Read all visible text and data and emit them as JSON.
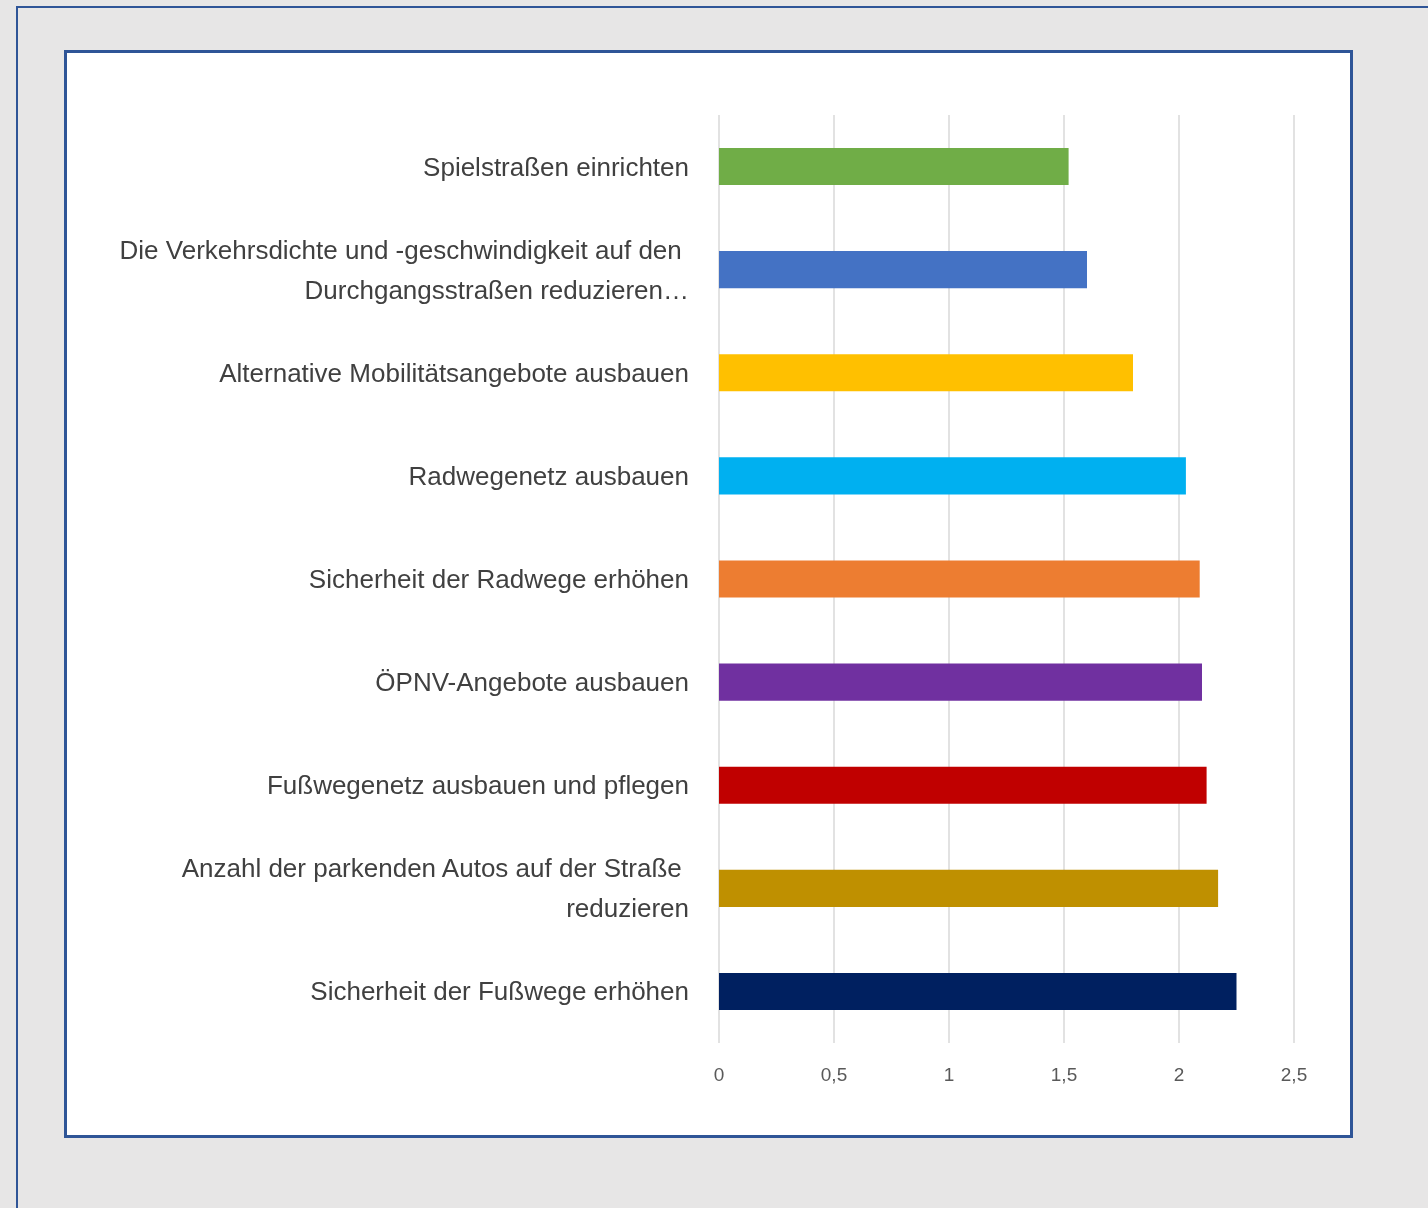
{
  "chart_data": {
    "type": "bar",
    "orientation": "horizontal",
    "categories": [
      "Spielstraßen einrichten",
      "Die Verkehrsdichte und -geschwindigkeit auf den Durchgangsstraßen reduzieren…",
      "Alternative Mobilitätsangebote ausbauen",
      "Radwegenetz ausbauen",
      "Sicherheit der Radwege erhöhen",
      "ÖPNV-Angebote ausbauen",
      "Fußwegenetz ausbauen und pflegen",
      "Anzahl der parkenden Autos auf der Straße reduzieren",
      "Sicherheit der Fußwege erhöhen"
    ],
    "values": [
      1.52,
      1.6,
      1.8,
      2.03,
      2.09,
      2.1,
      2.12,
      2.17,
      2.25
    ],
    "colors": [
      "#70ad47",
      "#4472c4",
      "#ffc000",
      "#00b0f0",
      "#ed7d31",
      "#7030a0",
      "#c00000",
      "#bf9000",
      "#002060"
    ],
    "xlim": [
      0,
      2.5
    ],
    "xticks": [
      0,
      {
        "value": 0.5,
        "label": "0,5"
      },
      1,
      {
        "value": 1.5,
        "label": "1,5"
      },
      2,
      {
        "value": 2.5,
        "label": "2,5"
      }
    ],
    "grid": "x"
  }
}
